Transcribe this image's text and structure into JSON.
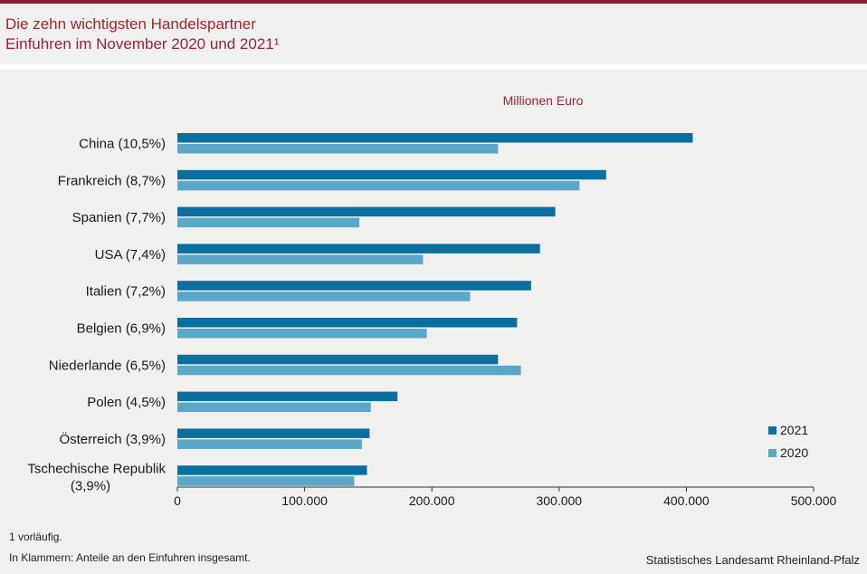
{
  "header": {
    "title_line1": "Die zehn wichtigsten Handelspartner",
    "title_line2": "Einfuhren im November 2020 und 2021¹"
  },
  "footer": {
    "note1": "1 vorläufig.",
    "note2": "In Klammern: Anteile an den Einfuhren insgesamt.",
    "source": "Statistisches Landesamt Rheinland-Pfalz"
  },
  "colors": {
    "s2021": "#0a6f9e",
    "s2020": "#5aa7c7",
    "accent": "#9b2335"
  },
  "chart_data": {
    "type": "bar",
    "orientation": "horizontal",
    "unit_label": "Millionen Euro",
    "categories": [
      [
        "China (10,5%)"
      ],
      [
        "Frankreich (8,7%)"
      ],
      [
        "Spanien (7,7%)"
      ],
      [
        "USA (7,4%)"
      ],
      [
        "Italien (7,2%)"
      ],
      [
        "Belgien (6,9%)"
      ],
      [
        "Niederlande (6,5%)"
      ],
      [
        "Polen (4,5%)"
      ],
      [
        "Österreich (3,9%)"
      ],
      [
        "Tschechische Republik",
        "(3,9%)"
      ]
    ],
    "series": [
      {
        "name": "2021",
        "values": [
          405000,
          337000,
          297000,
          285000,
          278000,
          267000,
          252000,
          173000,
          151000,
          149000
        ]
      },
      {
        "name": "2020",
        "values": [
          252000,
          316000,
          143000,
          193000,
          230000,
          196000,
          270000,
          152000,
          145000,
          139000
        ]
      }
    ],
    "xlim": [
      0,
      500000
    ],
    "xticks": [
      0,
      100000,
      200000,
      300000,
      400000,
      500000
    ],
    "xtick_labels": [
      "0",
      "100.000",
      "200.000",
      "300.000",
      "400.000",
      "500.000"
    ],
    "legend": "bottom-right",
    "grid": false
  }
}
